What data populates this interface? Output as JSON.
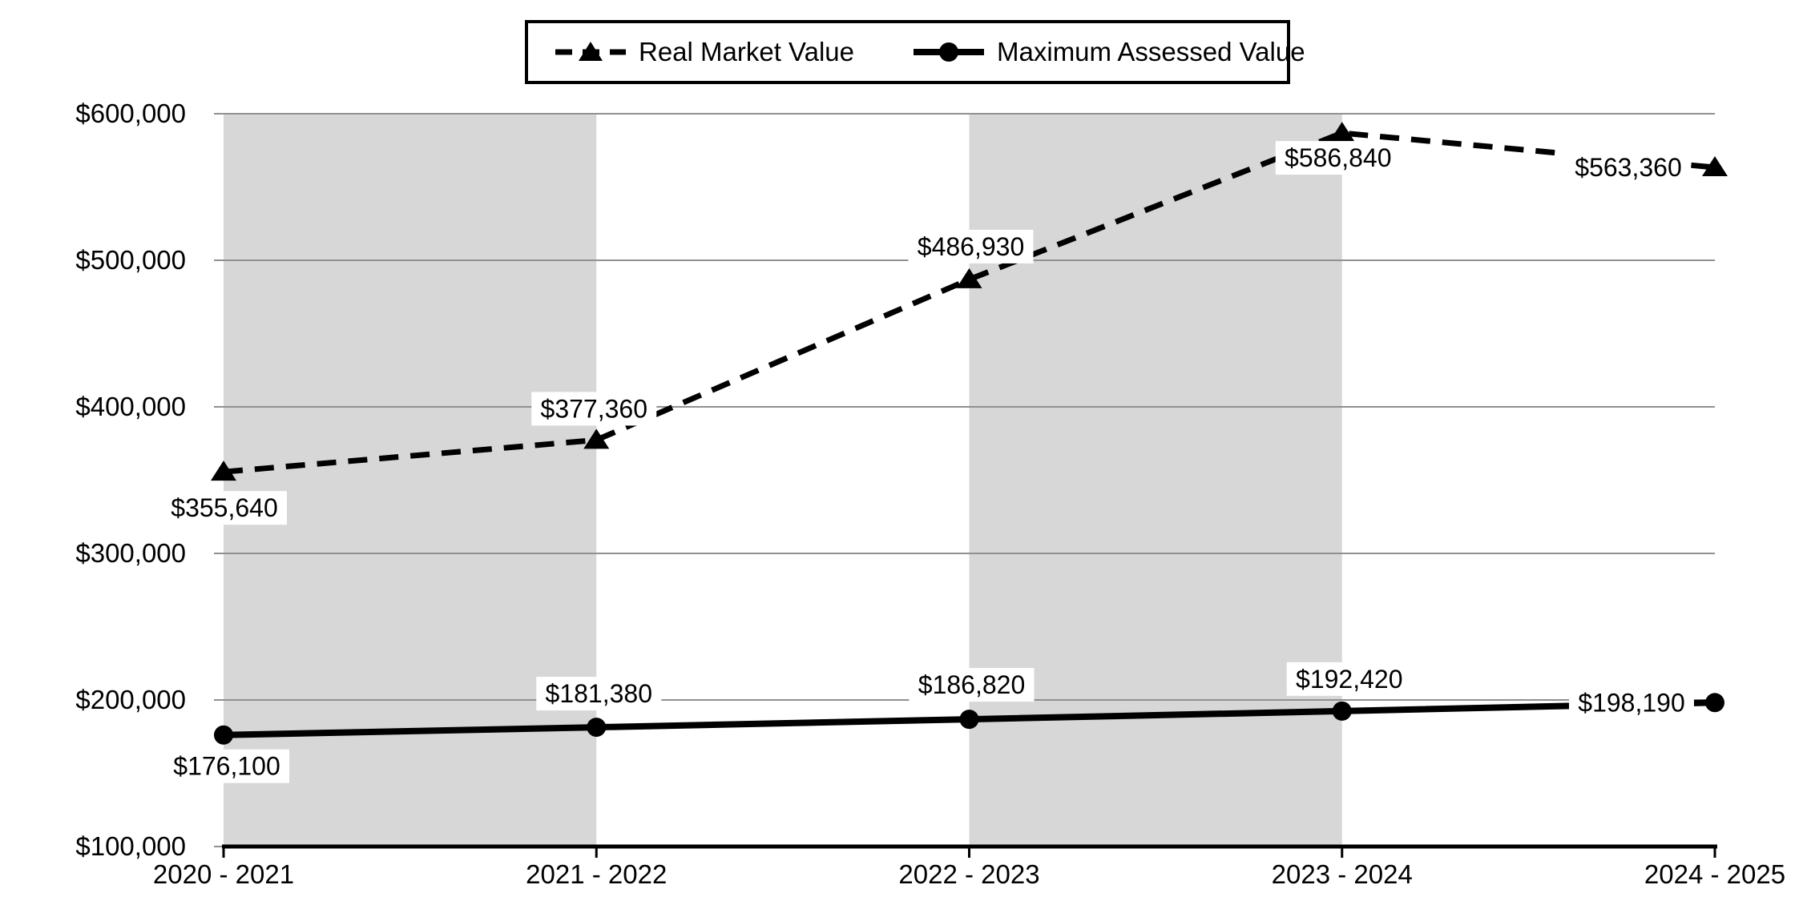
{
  "chart_data": {
    "type": "line",
    "categories": [
      "2020 - 2021",
      "2021 - 2022",
      "2022 - 2023",
      "2023 - 2024",
      "2024 - 2025"
    ],
    "series": [
      {
        "name": "Real Market Value",
        "line_style": "dashed",
        "marker": "triangle",
        "values": [
          355640,
          377360,
          486930,
          586840,
          563360
        ],
        "labels": [
          "$355,640",
          "$377,360",
          "$486,930",
          "$586,840",
          "$563,360"
        ]
      },
      {
        "name": "Maximum Assessed Value",
        "line_style": "solid",
        "marker": "circle",
        "values": [
          176100,
          181380,
          186820,
          192420,
          198190
        ],
        "labels": [
          "$176,100",
          "$181,380",
          "$186,820",
          "$192,420",
          "$198,190"
        ]
      }
    ],
    "ylim": [
      100000,
      600000
    ],
    "ytick_step": 100000,
    "ytick_labels": [
      "$100,000",
      "$200,000",
      "$300,000",
      "$400,000",
      "$500,000",
      "$600,000"
    ],
    "grid": true,
    "legend_position": "top-center",
    "shaded_band_ranges": [
      [
        0,
        1
      ],
      [
        2,
        3
      ]
    ],
    "colors": {
      "line": "#000000",
      "gridline": "#909090",
      "band": "#d7d7d7",
      "axis": "#000000",
      "label_background": "#ffffff",
      "text": "#000000"
    }
  }
}
